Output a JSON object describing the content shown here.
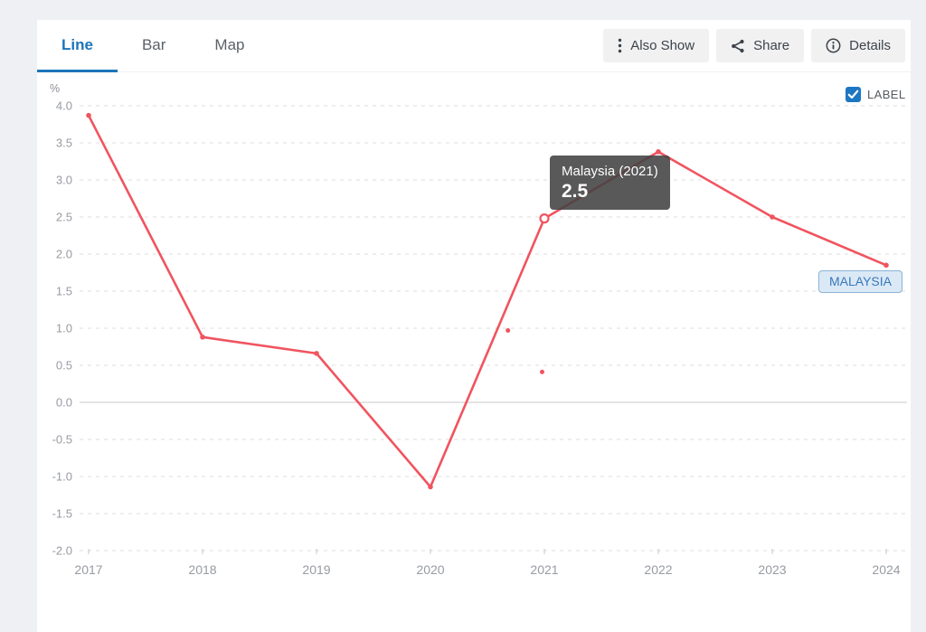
{
  "page": {
    "background": "#eef0f3",
    "card_background": "#ffffff",
    "accent": "#1b75bb"
  },
  "tabs": {
    "items": [
      {
        "label": "Line",
        "active": true
      },
      {
        "label": "Bar",
        "active": false
      },
      {
        "label": "Map",
        "active": false
      }
    ]
  },
  "toolbar": {
    "buttons": [
      {
        "label": "Also Show",
        "icon": "kebab-menu-icon"
      },
      {
        "label": "Share",
        "icon": "share-icon"
      },
      {
        "label": "Details",
        "icon": "info-icon"
      }
    ]
  },
  "legend": {
    "checkbox_label": "LABEL",
    "checked": true,
    "checkbox_color": "#1d76c2"
  },
  "series_badge": {
    "text": "MALAYSIA"
  },
  "tooltip": {
    "title": "Malaysia (2021)",
    "value": "2.5"
  },
  "chart_data": {
    "type": "line",
    "unit_label": "%",
    "x": [
      2017,
      2018,
      2019,
      2020,
      2021,
      2022,
      2023,
      2024
    ],
    "series": [
      {
        "name": "Malaysia",
        "color": "#f0545f",
        "values": [
          3.87,
          0.88,
          0.66,
          -1.14,
          2.48,
          3.38,
          2.5,
          1.85
        ]
      }
    ],
    "highlight": {
      "series": "Malaysia",
      "x": 2021,
      "value": 2.48,
      "tooltip_title": "Malaysia (2021)",
      "tooltip_value": "2.5"
    },
    "yticks": [
      4.0,
      3.5,
      3.0,
      2.5,
      2.0,
      1.5,
      1.0,
      0.5,
      0.0,
      -0.5,
      -1.0,
      -1.5,
      -2.0
    ],
    "ylim": [
      -2.0,
      4.0
    ],
    "grid": {
      "horizontal": "dashed",
      "zero_line": "solid",
      "legend_position": "top-right"
    },
    "stray_points": [
      {
        "x": 2020.68,
        "value": 0.97
      },
      {
        "x": 2020.98,
        "value": 0.41
      }
    ],
    "colors": {
      "grid": "#dcdcdc",
      "zero_line": "#c9c9c9",
      "axis_text": "#979ba2",
      "tick_mark": "#c9c9c9"
    }
  }
}
